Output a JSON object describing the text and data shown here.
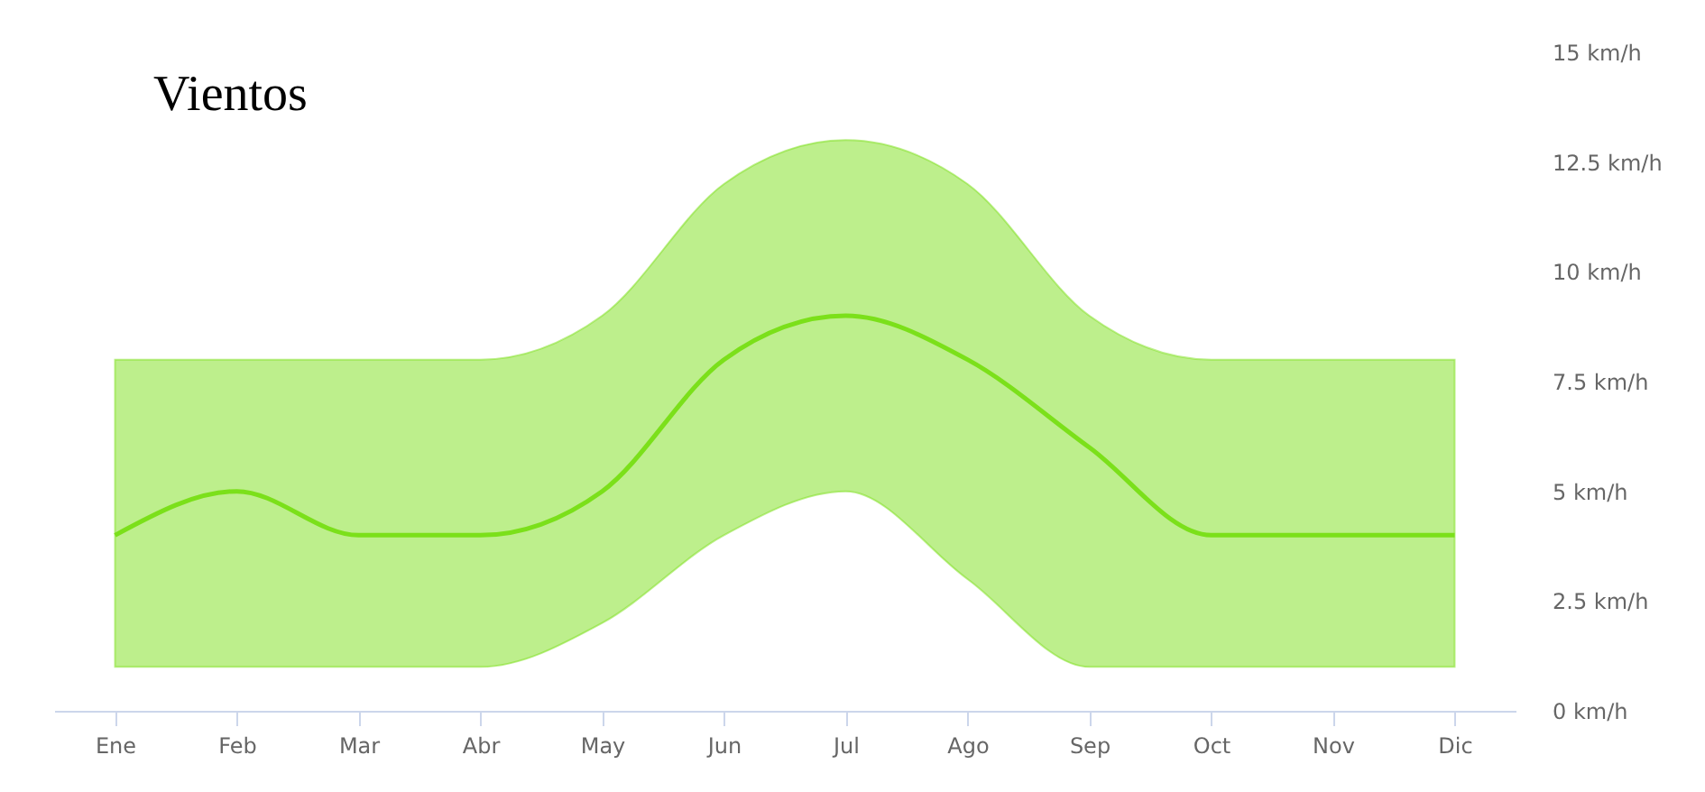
{
  "chart_data": {
    "type": "line",
    "title": "Vientos",
    "categories": [
      "Ene",
      "Feb",
      "Mar",
      "Abr",
      "May",
      "Jun",
      "Jul",
      "Ago",
      "Sep",
      "Oct",
      "Nov",
      "Dic"
    ],
    "series": [
      {
        "color": "#7be01a",
        "values": [
          4,
          5,
          4,
          4,
          5,
          8,
          9,
          8,
          6,
          4,
          4,
          4
        ],
        "lower": [
          1,
          1,
          1,
          1,
          2,
          4,
          5,
          3,
          1,
          1,
          1,
          1
        ],
        "upper": [
          8,
          8,
          8,
          8,
          9,
          12,
          13,
          12,
          9,
          8,
          8,
          8
        ]
      }
    ],
    "ylim": [
      0,
      15
    ],
    "yticks": [
      {
        "value": 0,
        "label": "0 km/h"
      },
      {
        "value": 2.5,
        "label": "2.5 km/h"
      },
      {
        "value": 5,
        "label": "5 km/h"
      },
      {
        "value": 7.5,
        "label": "7.5 km/h"
      },
      {
        "value": 10,
        "label": "10 km/h"
      },
      {
        "value": 12.5,
        "label": "12.5 km/h"
      },
      {
        "value": 15,
        "label": "15 km/h"
      }
    ],
    "grid": false,
    "marker": "none",
    "line_style": "solid"
  }
}
